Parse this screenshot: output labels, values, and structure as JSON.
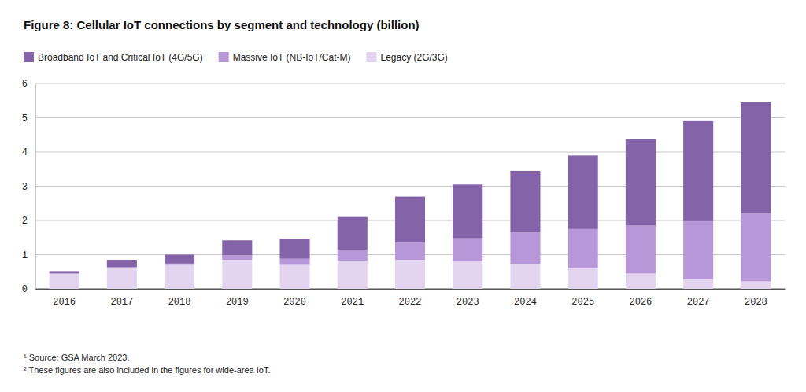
{
  "chart_data": {
    "type": "bar",
    "title": "Figure 8: Cellular IoT connections by segment and technology (billion)",
    "categories": [
      "2016",
      "2017",
      "2018",
      "2019",
      "2020",
      "2021",
      "2022",
      "2023",
      "2024",
      "2025",
      "2026",
      "2027",
      "2028"
    ],
    "series": [
      {
        "name": "Broadband IoT and Critical IoT (4G/5G)",
        "color": "#8563a8",
        "values": [
          0.07,
          0.21,
          0.26,
          0.44,
          0.59,
          0.96,
          1.35,
          1.57,
          1.8,
          2.15,
          2.53,
          2.92,
          3.25
        ]
      },
      {
        "name": "Massive IoT (NB-IoT/Cat-M)",
        "color": "#b897d8",
        "values": [
          0,
          0.02,
          0.04,
          0.13,
          0.18,
          0.32,
          0.5,
          0.68,
          0.92,
          1.15,
          1.4,
          1.7,
          1.98
        ]
      },
      {
        "name": "Legacy (2G/3G)",
        "color": "#e3d5ef",
        "values": [
          0.45,
          0.62,
          0.7,
          0.85,
          0.7,
          0.82,
          0.85,
          0.8,
          0.73,
          0.6,
          0.45,
          0.28,
          0.22
        ]
      }
    ],
    "stacked": true,
    "ylim": [
      0,
      6
    ],
    "yticks": [
      0,
      1,
      2,
      3,
      4,
      5,
      6
    ],
    "grid": true,
    "legend": "top",
    "footnotes": [
      "¹ Source: GSA March 2023.",
      "² These figures are also included in the figures for wide-area IoT."
    ]
  }
}
